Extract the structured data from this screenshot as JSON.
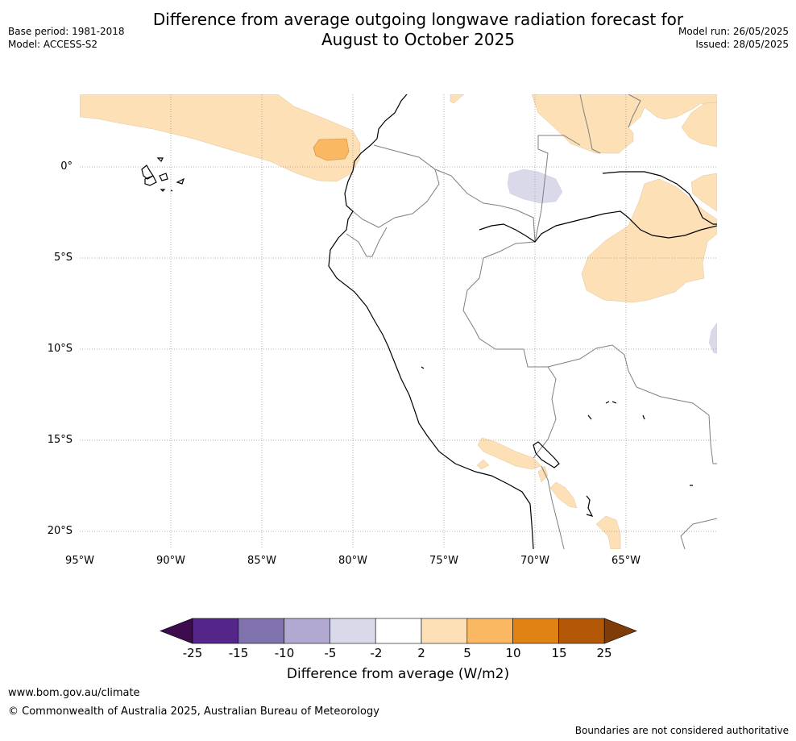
{
  "title_line1": "Difference from average outgoing longwave radiation forecast for",
  "title_line2": "August to October 2025",
  "base_period": "Base period: 1981-2018",
  "model": "Model: ACCESS-S2",
  "model_run": "Model run: 26/05/2025",
  "issued": "Issued: 28/05/2025",
  "map": {
    "lat_labels": [
      "0°",
      "5°S",
      "10°S",
      "15°S",
      "20°S"
    ],
    "lon_labels": [
      "95°W",
      "90°W",
      "85°W",
      "80°W",
      "75°W",
      "70°W",
      "65°W"
    ],
    "colors": {
      "light_orange": "#fde0b6",
      "orange": "#fbb863",
      "light_lavender": "#d9d9ea",
      "coastline": "#000000",
      "border": "#7f7f7f",
      "gridline": "#999999"
    }
  },
  "colorbar": {
    "title": "Difference from average (W/m2)",
    "ticks": [
      "-25",
      "-15",
      "-10",
      "-5",
      "-2",
      "2",
      "5",
      "10",
      "15",
      "25"
    ],
    "colors": [
      "#3c0c4e",
      "#54268a",
      "#7f72ad",
      "#b1a9d2",
      "#d9d9ea",
      "#ffffff",
      "#fde0b6",
      "#fbb863",
      "#e08214",
      "#b35806",
      "#7f3b08"
    ]
  },
  "footer": {
    "url": "www.bom.gov.au/climate",
    "copyright": "© Commonwealth of Australia 2025, Australian Bureau of Meteorology",
    "note": "Boundaries are not considered authoritative"
  }
}
